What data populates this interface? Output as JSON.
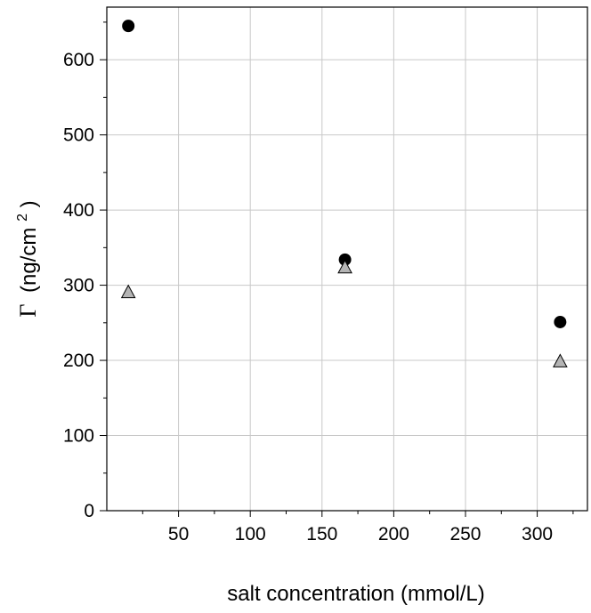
{
  "chart_data": {
    "type": "scatter",
    "xlabel": "salt concentration (mmol/L)",
    "ylabel": {
      "symbol": "Γ",
      "text": "(ng/cm",
      "superscript": "2",
      "closing": ")"
    },
    "xlim": [
      0,
      335
    ],
    "ylim": [
      0,
      670
    ],
    "xticks": [
      50,
      100,
      150,
      200,
      250,
      300
    ],
    "yticks": [
      0,
      100,
      200,
      300,
      400,
      500,
      600
    ],
    "grid": true,
    "series": [
      {
        "marker": "circle",
        "color": "#000000",
        "points": [
          [
            15,
            645
          ],
          [
            166,
            334
          ],
          [
            316,
            251
          ]
        ]
      },
      {
        "marker": "triangle",
        "color": "#b4b4b4",
        "points": [
          [
            15,
            291
          ],
          [
            166,
            324
          ],
          [
            316,
            199
          ]
        ]
      }
    ]
  }
}
